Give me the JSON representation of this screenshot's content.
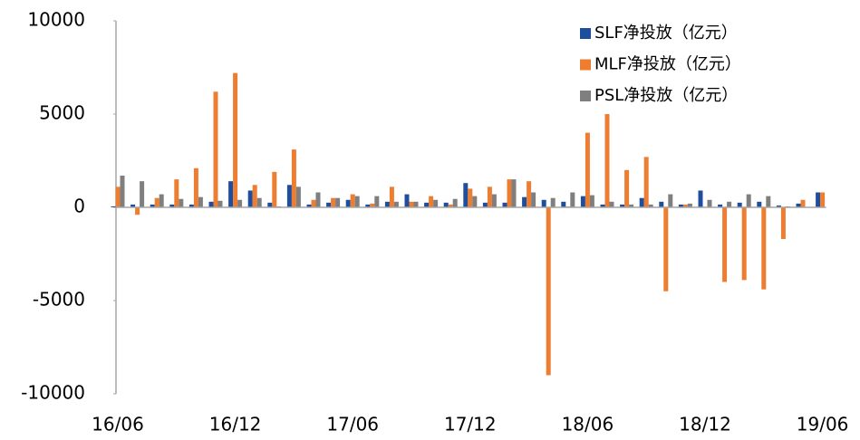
{
  "chart_data": {
    "type": "bar",
    "categories": [
      "16/06",
      null,
      null,
      null,
      null,
      null,
      "16/12",
      null,
      null,
      null,
      null,
      null,
      "17/06",
      null,
      null,
      null,
      null,
      null,
      "17/12",
      null,
      null,
      null,
      null,
      null,
      "18/06",
      null,
      null,
      null,
      null,
      null,
      "18/12",
      null,
      null,
      null,
      null,
      null,
      "19/06"
    ],
    "series": [
      {
        "name": "SLF净投放（亿元）",
        "color": "#1f4e9c",
        "values": [
          50,
          150,
          150,
          150,
          150,
          300,
          1400,
          900,
          250,
          1200,
          150,
          250,
          400,
          150,
          300,
          700,
          250,
          250,
          1300,
          250,
          250,
          550,
          400,
          300,
          600,
          150,
          150,
          500,
          300,
          150,
          900,
          150,
          250,
          300,
          100,
          200,
          800
        ]
      },
      {
        "name": "MLF净投放（亿元）",
        "color": "#ed7d31",
        "values": [
          1100,
          -400,
          500,
          1500,
          2100,
          6200,
          7200,
          1200,
          1900,
          3100,
          400,
          500,
          700,
          200,
          1100,
          300,
          600,
          150,
          1000,
          1100,
          1500,
          1400,
          -9000,
          50,
          4000,
          5000,
          2000,
          2700,
          -4500,
          150,
          0,
          -4000,
          -3900,
          -4400,
          -1700,
          400,
          800
        ]
      },
      {
        "name": "PSL净投放（亿元）",
        "color": "#7f7f7f",
        "values": [
          1700,
          1400,
          700,
          450,
          550,
          350,
          400,
          500,
          50,
          1100,
          800,
          500,
          600,
          600,
          300,
          300,
          400,
          450,
          600,
          700,
          1500,
          800,
          500,
          800,
          650,
          300,
          150,
          150,
          700,
          200,
          400,
          300,
          700,
          600,
          50,
          0,
          0
        ]
      }
    ],
    "ylim": [
      -10000,
      10000
    ],
    "yticks": [
      -10000,
      -5000,
      0,
      5000,
      10000
    ],
    "legend": "top-right"
  }
}
